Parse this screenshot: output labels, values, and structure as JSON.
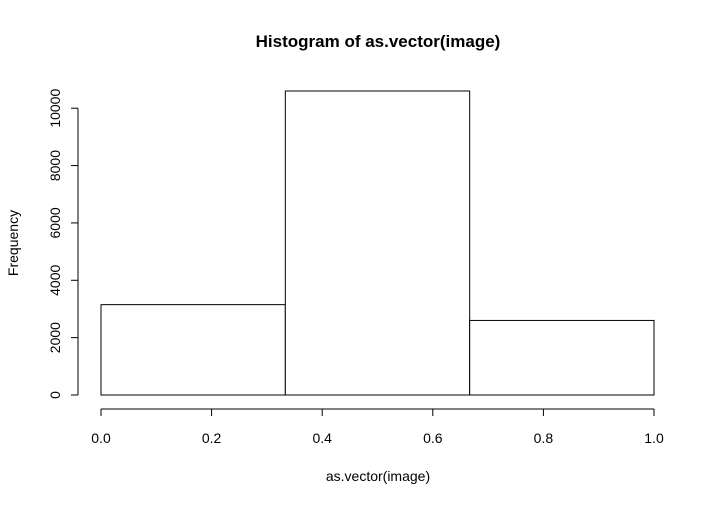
{
  "chart_data": {
    "type": "bar",
    "title": "Histogram of as.vector(image)",
    "xlabel": "as.vector(image)",
    "ylabel": "Frequency",
    "bins": [
      {
        "start": 0.0,
        "end": 0.3333,
        "count": 3150
      },
      {
        "start": 0.3333,
        "end": 0.6667,
        "count": 10600
      },
      {
        "start": 0.6667,
        "end": 1.0,
        "count": 2600
      }
    ],
    "xlim": [
      0.0,
      1.0
    ],
    "ylim": [
      0,
      10600
    ],
    "xticks": [
      0.0,
      0.2,
      0.4,
      0.6,
      0.8,
      1.0
    ],
    "xtick_labels": [
      "0.0",
      "0.2",
      "0.4",
      "0.6",
      "0.8",
      "1.0"
    ],
    "yticks": [
      0,
      2000,
      4000,
      6000,
      8000,
      10000
    ],
    "ytick_labels": [
      "0",
      "2000",
      "4000",
      "6000",
      "8000",
      "10000"
    ],
    "grid": false,
    "bar_fill": "#ffffff",
    "bar_stroke": "#000000"
  }
}
